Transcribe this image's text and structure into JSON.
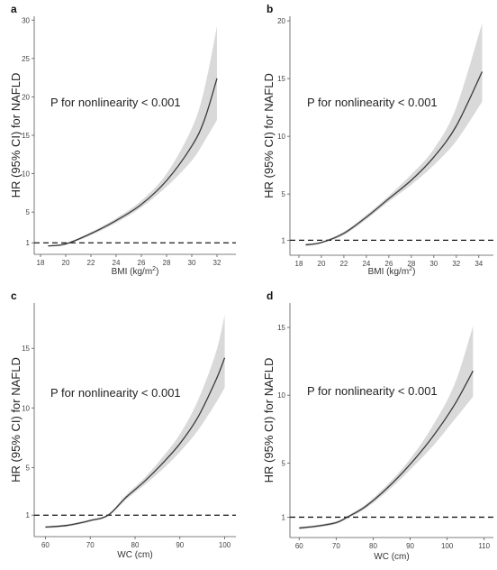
{
  "chart_data": [
    {
      "type": "line",
      "panel": "a",
      "annotation": "P for nonlinearity < 0.001",
      "xlabel_main": "BMI",
      "xlabel_unit": "(kg/m",
      "xlabel_sup": "2",
      "xlabel_close": ")",
      "ylabel": "HR (95% CI) for NAFLD",
      "xlim": [
        17.5,
        33.5
      ],
      "ylim": [
        -0.5,
        30.5
      ],
      "xticks": [
        18,
        20,
        22,
        24,
        26,
        28,
        30,
        32
      ],
      "yticks": [
        1,
        5,
        10,
        15,
        20,
        25,
        30
      ],
      "reference_line": 1,
      "x": [
        18.6,
        20.0,
        22.0,
        24.0,
        26.0,
        28.0,
        30.0,
        31.0,
        32.0
      ],
      "y": [
        0.6,
        0.85,
        2.2,
        3.9,
        6.0,
        9.1,
        13.6,
        17.0,
        22.4
      ],
      "lower": [
        0.5,
        0.75,
        2.0,
        3.6,
        5.6,
        8.3,
        11.7,
        14.2,
        17.0
      ],
      "upper": [
        0.7,
        0.95,
        2.4,
        4.2,
        6.5,
        10.0,
        15.9,
        21.0,
        29.2
      ]
    },
    {
      "type": "line",
      "panel": "b",
      "annotation": "P for nonlinearity < 0.001",
      "xlabel_main": "BMI",
      "xlabel_unit": "(kg/m",
      "xlabel_sup": "2",
      "xlabel_close": ")",
      "ylabel": "HR (95% CI) for NAFLD",
      "xlim": [
        17.2,
        35.3
      ],
      "ylim": [
        -0.3,
        20.4
      ],
      "xticks": [
        18,
        20,
        22,
        24,
        26,
        28,
        30,
        32,
        34
      ],
      "yticks": [
        1,
        5,
        10,
        15,
        20
      ],
      "reference_line": 1,
      "x": [
        18.6,
        20.0,
        22.0,
        24.0,
        26.0,
        28.0,
        30.0,
        32.0,
        34.3
      ],
      "y": [
        0.6,
        0.8,
        1.6,
        3.0,
        4.6,
        6.2,
        8.2,
        10.9,
        15.6
      ],
      "lower": [
        0.5,
        0.72,
        1.45,
        2.8,
        4.35,
        5.8,
        7.5,
        9.6,
        13.0
      ],
      "upper": [
        0.7,
        0.88,
        1.75,
        3.2,
        4.85,
        6.7,
        8.9,
        12.5,
        19.8
      ]
    },
    {
      "type": "line",
      "panel": "c",
      "annotation": "P for nonlinearity < 0.001",
      "xlabel_main": "WC (cm)",
      "xlabel_unit": "",
      "xlabel_sup": "",
      "xlabel_close": "",
      "ylabel": "HR (95% CI) for NAFLD",
      "xlim": [
        57.5,
        102.5
      ],
      "ylim": [
        -0.8,
        18.8
      ],
      "xticks": [
        60,
        70,
        80,
        90,
        100
      ],
      "yticks": [
        1,
        5,
        10,
        15
      ],
      "reference_line": 1,
      "x": [
        60.0,
        65.0,
        70.0,
        74.0,
        78.0,
        82.0,
        86.0,
        90.0,
        94.0,
        98.0,
        100.0
      ],
      "y": [
        0.0,
        0.15,
        0.55,
        1.0,
        2.5,
        3.8,
        5.3,
        7.0,
        9.2,
        12.3,
        14.2
      ],
      "lower": [
        -0.1,
        0.05,
        0.45,
        0.9,
        2.3,
        3.5,
        4.8,
        6.3,
        8.1,
        10.4,
        11.7
      ],
      "upper": [
        0.1,
        0.25,
        0.65,
        1.1,
        2.7,
        4.1,
        5.8,
        7.8,
        10.6,
        14.6,
        17.8
      ]
    },
    {
      "type": "line",
      "panel": "d",
      "annotation": "P for nonlinearity < 0.001",
      "xlabel_main": "WC (cm)",
      "xlabel_unit": "",
      "xlabel_sup": "",
      "xlabel_close": "",
      "ylabel": "HR (95% CI) for NAFLD",
      "xlim": [
        57.5,
        112.5
      ],
      "ylim": [
        -0.5,
        16.8
      ],
      "xticks": [
        60,
        70,
        80,
        90,
        100,
        110
      ],
      "yticks": [
        1,
        5,
        10,
        15
      ],
      "reference_line": 1,
      "x": [
        60.0,
        65.0,
        70.0,
        73.0,
        78.0,
        84.0,
        90.0,
        96.0,
        102.0,
        107.0
      ],
      "y": [
        0.2,
        0.35,
        0.6,
        1.0,
        1.8,
        3.2,
        4.9,
        6.9,
        9.3,
        11.8
      ],
      "lower": [
        0.1,
        0.25,
        0.5,
        0.9,
        1.65,
        2.95,
        4.5,
        6.2,
        8.2,
        9.9
      ],
      "upper": [
        0.3,
        0.45,
        0.7,
        1.1,
        1.95,
        3.45,
        5.3,
        7.7,
        10.8,
        15.1
      ]
    }
  ],
  "colors": {
    "line": "#3a3a3a",
    "band": "#d9d9d9",
    "axis": "#555555",
    "reference": "#1a1a1a"
  }
}
